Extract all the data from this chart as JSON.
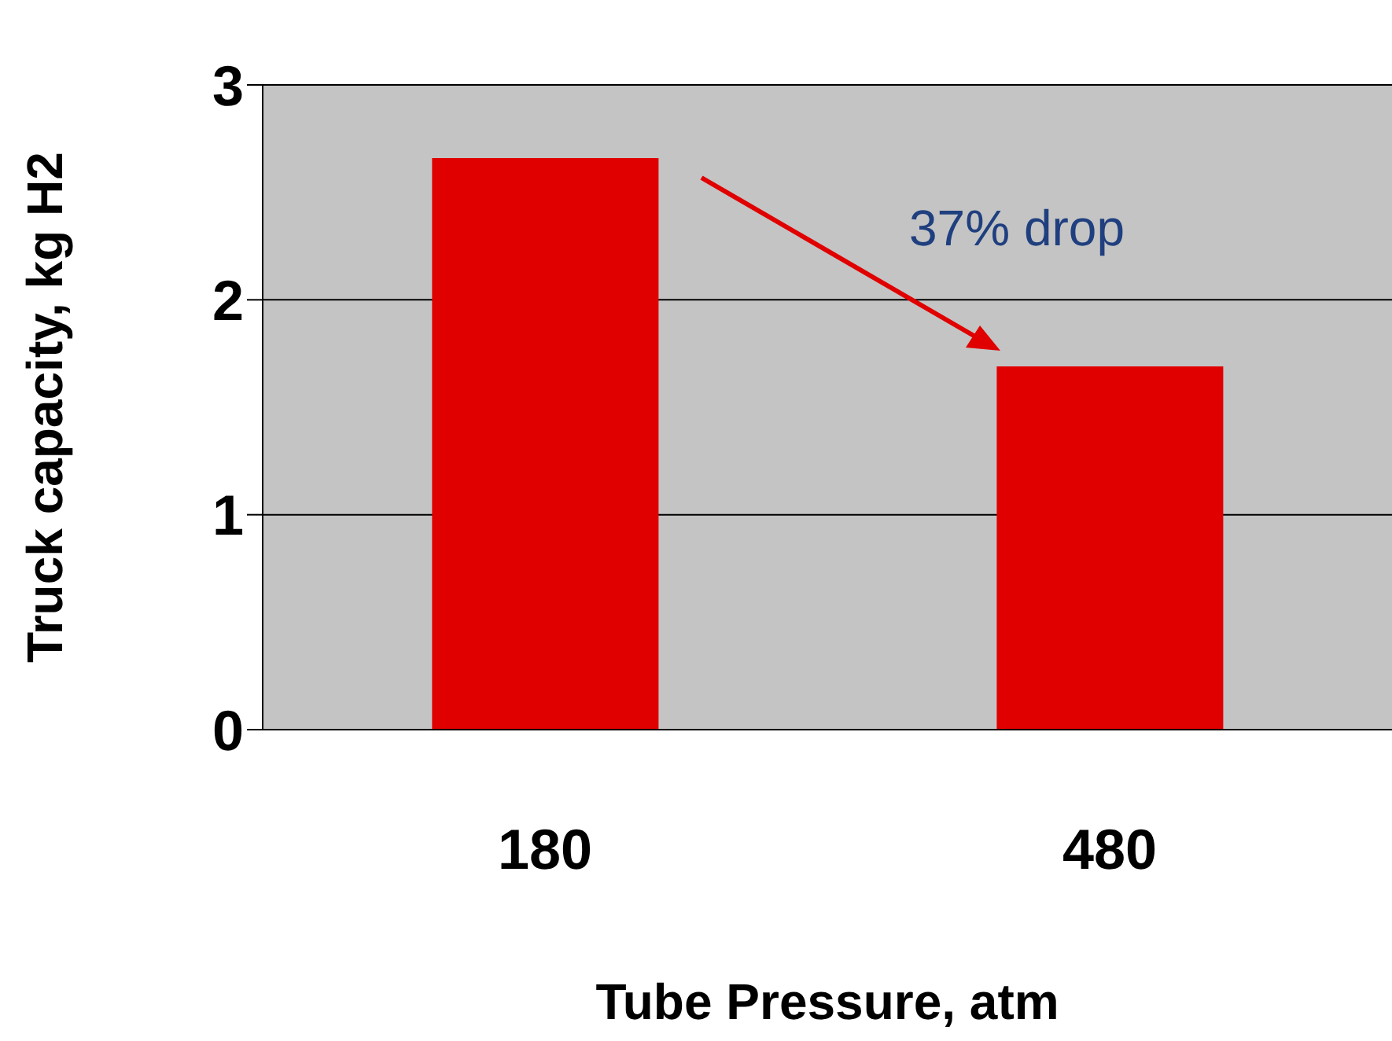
{
  "chart_data": {
    "type": "bar",
    "xlabel": "Tube Pressure, atm",
    "ylabel": "Truck capacity, kg H2",
    "categories": [
      "180",
      "480"
    ],
    "values": [
      2.66,
      1.69
    ],
    "color": "#e00000",
    "ylim": [
      0,
      3
    ],
    "yticks": [
      0,
      1,
      2,
      3
    ],
    "grid": "y",
    "annotations": [
      "37% drop"
    ]
  }
}
